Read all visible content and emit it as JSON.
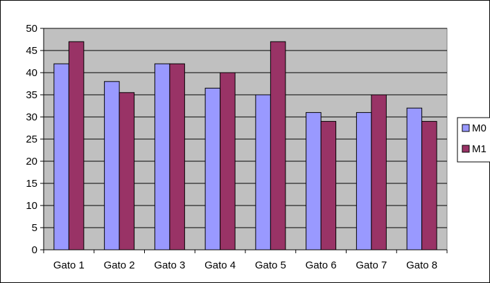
{
  "chart_data": {
    "type": "bar",
    "title": "",
    "xlabel": "",
    "ylabel": "",
    "categories": [
      "Gato 1",
      "Gato 2",
      "Gato 3",
      "Gato 4",
      "Gato 5",
      "Gato 6",
      "Gato 7",
      "Gato 8"
    ],
    "series": [
      {
        "name": "M0",
        "color": "#9999ff",
        "values": [
          42,
          38,
          42,
          36.5,
          35,
          31,
          31,
          32
        ]
      },
      {
        "name": "M1",
        "color": "#993366",
        "values": [
          47,
          35.5,
          42,
          40,
          47,
          29,
          35,
          29
        ]
      }
    ],
    "ylim": [
      0,
      50
    ],
    "yticks": [
      0,
      5,
      10,
      15,
      20,
      25,
      30,
      35,
      40,
      45,
      50
    ],
    "grid": true,
    "plot_background": "#c0c0c0",
    "legend": "right"
  }
}
